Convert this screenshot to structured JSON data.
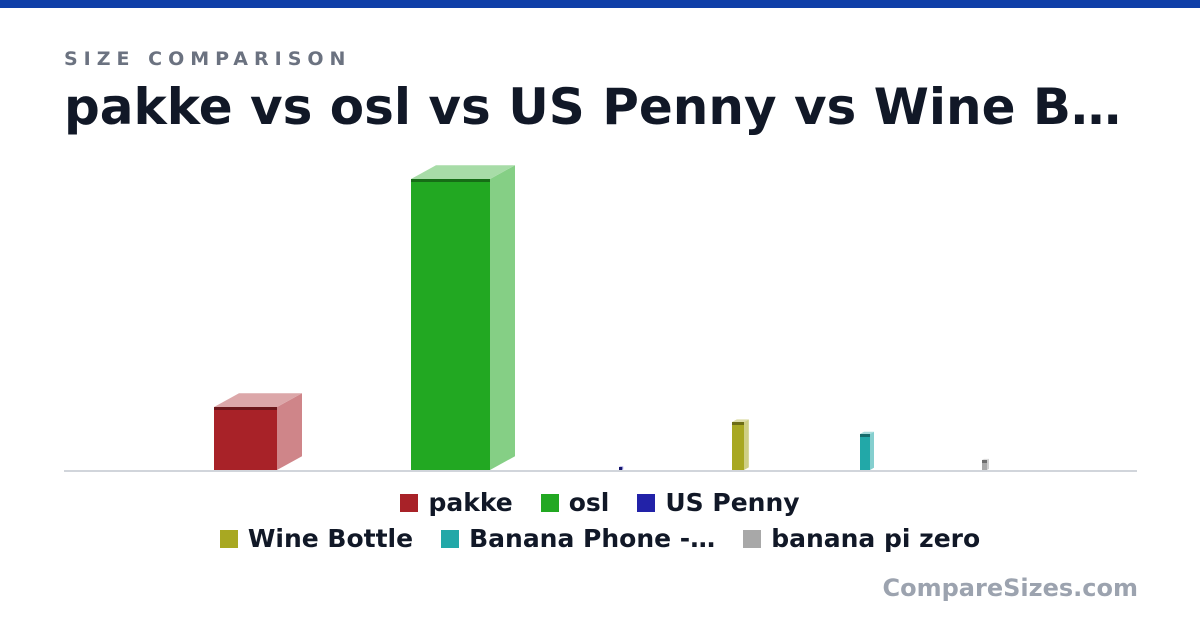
{
  "chart_data": {
    "type": "box3d",
    "subtitle": "SIZE COMPARISON",
    "title": "pakke vs osl vs US Penny vs Wine B…",
    "watermark": "CompareSizes.com",
    "series": [
      {
        "name": "pakke",
        "color": "#a82228",
        "values": [
          63
        ],
        "widths": [
          63
        ]
      },
      {
        "name": "osl",
        "color": "#22a822",
        "values": [
          291
        ],
        "widths": [
          79
        ]
      },
      {
        "name": "US Penny",
        "color": "#2222a8",
        "values": [
          3
        ],
        "widths": [
          3
        ]
      },
      {
        "name": "Wine Bottle",
        "color": "#a8a822",
        "values": [
          48
        ],
        "widths": [
          12
        ]
      },
      {
        "name": "Banana Phone -…",
        "color": "#22a8a8",
        "values": [
          36
        ],
        "widths": [
          10
        ]
      },
      {
        "name": "banana pi zero",
        "color": "#a8a8a8",
        "values": [
          10
        ],
        "widths": [
          5
        ]
      }
    ],
    "ylim": [
      0,
      300
    ]
  }
}
